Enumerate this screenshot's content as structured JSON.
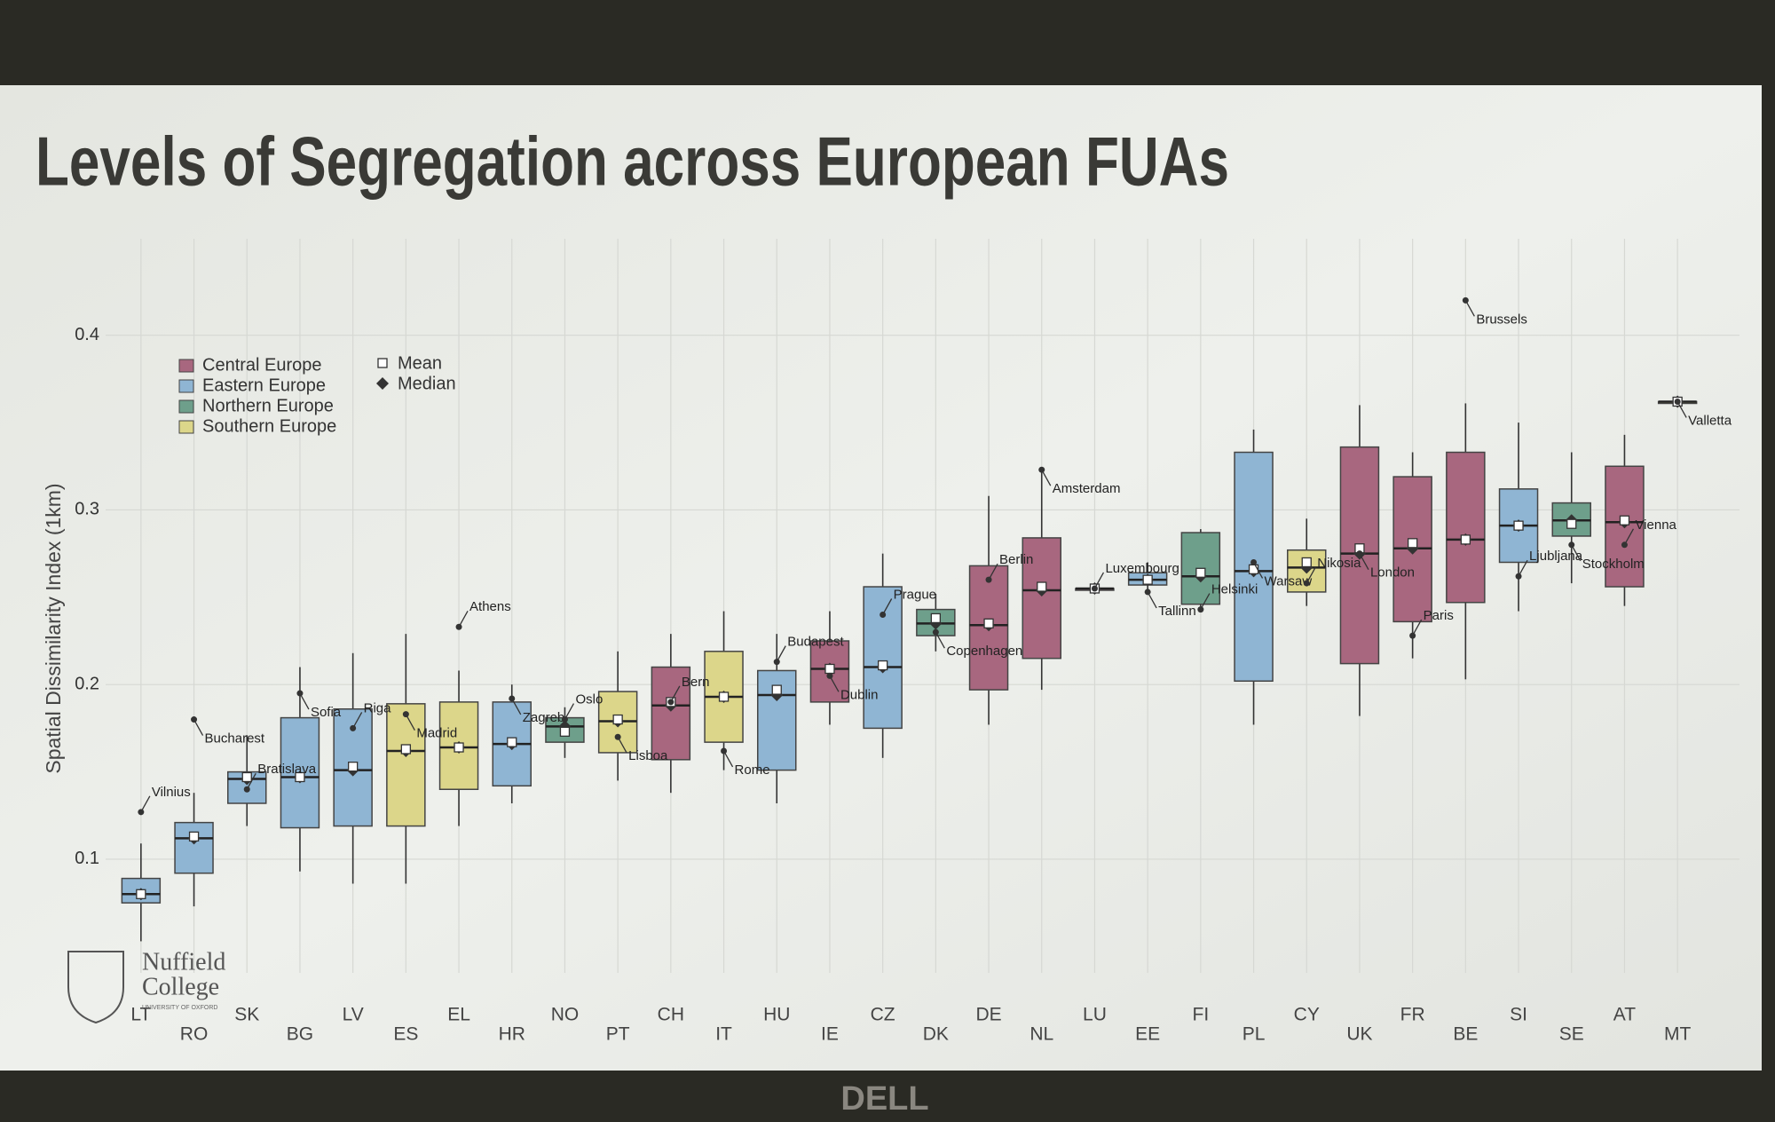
{
  "chart_data": {
    "type": "box",
    "title": "Levels of Segregation across European FUAs",
    "y_label": "Spatial Dissimilarity Index (1km)",
    "categories": [
      "LT",
      "RO",
      "SK",
      "BG",
      "LV",
      "ES",
      "EL",
      "HR",
      "NO",
      "PT",
      "CH",
      "IT",
      "HU",
      "IE",
      "CZ",
      "DK",
      "DE",
      "NL",
      "LU",
      "EE",
      "FI",
      "PL",
      "CY",
      "UK",
      "FR",
      "BE",
      "SI",
      "SE",
      "AT",
      "MT"
    ],
    "colors": [
      "#8fb5d3",
      "#8fb5d3",
      "#8fb5d3",
      "#8fb5d3",
      "#8fb5d3",
      "#dcd68a",
      "#dcd68a",
      "#8fb5d3",
      "#6e9f8b",
      "#dcd68a",
      "#a8677f",
      "#dcd68a",
      "#8fb5d3",
      "#a8677f",
      "#8fb5d3",
      "#6e9f8b",
      "#a8677f",
      "#a8677f",
      "#a8677f",
      "#8fb5d3",
      "#6e9f8b",
      "#8fb5d3",
      "#dcd68a",
      "#a8677f",
      "#a8677f",
      "#a8677f",
      "#8fb5d3",
      "#6e9f8b",
      "#a8677f",
      "#dcd68a"
    ],
    "whisker_low": [
      0.053,
      0.073,
      0.119,
      0.093,
      0.086,
      0.086,
      0.119,
      0.132,
      0.158,
      0.145,
      0.138,
      0.151,
      0.132,
      0.177,
      0.158,
      0.219,
      0.177,
      0.197,
      0.255,
      0.253,
      0.242,
      0.177,
      0.245,
      0.182,
      0.215,
      0.203,
      0.242,
      0.258,
      0.245,
      0.362
    ],
    "q1": [
      0.075,
      0.092,
      0.132,
      0.118,
      0.119,
      0.119,
      0.14,
      0.142,
      0.167,
      0.161,
      0.157,
      0.167,
      0.151,
      0.19,
      0.175,
      0.228,
      0.197,
      0.215,
      0.255,
      0.257,
      0.246,
      0.202,
      0.253,
      0.212,
      0.236,
      0.247,
      0.27,
      0.285,
      0.256,
      0.362
    ],
    "median": [
      0.08,
      0.112,
      0.146,
      0.147,
      0.151,
      0.162,
      0.164,
      0.166,
      0.176,
      0.179,
      0.188,
      0.193,
      0.194,
      0.209,
      0.21,
      0.235,
      0.234,
      0.254,
      0.255,
      0.26,
      0.262,
      0.265,
      0.267,
      0.275,
      0.278,
      0.283,
      0.291,
      0.294,
      0.293,
      0.362
    ],
    "q3": [
      0.089,
      0.121,
      0.15,
      0.181,
      0.186,
      0.189,
      0.19,
      0.19,
      0.181,
      0.196,
      0.21,
      0.219,
      0.208,
      0.225,
      0.256,
      0.243,
      0.268,
      0.284,
      0.255,
      0.264,
      0.287,
      0.333,
      0.277,
      0.336,
      0.319,
      0.333,
      0.312,
      0.304,
      0.325,
      0.362
    ],
    "whisker_high": [
      0.109,
      0.138,
      0.171,
      0.21,
      0.218,
      0.229,
      0.208,
      0.2,
      0.187,
      0.219,
      0.229,
      0.242,
      0.229,
      0.242,
      0.275,
      0.252,
      0.308,
      0.323,
      0.255,
      0.27,
      0.289,
      0.346,
      0.295,
      0.36,
      0.333,
      0.361,
      0.35,
      0.333,
      0.343,
      0.362
    ],
    "mean": [
      0.08,
      0.113,
      0.147,
      0.147,
      0.153,
      0.163,
      0.164,
      0.167,
      0.173,
      0.18,
      0.19,
      0.193,
      0.197,
      0.209,
      0.211,
      0.238,
      0.235,
      0.256,
      0.255,
      0.26,
      0.264,
      0.266,
      0.27,
      0.278,
      0.281,
      0.283,
      0.291,
      0.292,
      0.294,
      0.362
    ],
    "capitals": [
      {
        "name": "Vilnius",
        "value": 0.127
      },
      {
        "name": "Bucharest",
        "value": 0.18
      },
      {
        "name": "Bratislava",
        "value": 0.14
      },
      {
        "name": "Sofia",
        "value": 0.195
      },
      {
        "name": "Riga",
        "value": 0.175
      },
      {
        "name": "Madrid",
        "value": 0.183
      },
      {
        "name": "Athens",
        "value": 0.233
      },
      {
        "name": "Zagreb",
        "value": 0.192
      },
      {
        "name": "Oslo",
        "value": 0.18
      },
      {
        "name": "Lisboa",
        "value": 0.17
      },
      {
        "name": "Bern",
        "value": 0.19
      },
      {
        "name": "Rome",
        "value": 0.162
      },
      {
        "name": "Budapest",
        "value": 0.213
      },
      {
        "name": "Dublin",
        "value": 0.205
      },
      {
        "name": "Prague",
        "value": 0.24
      },
      {
        "name": "Copenhagen",
        "value": 0.23
      },
      {
        "name": "Berlin",
        "value": 0.26
      },
      {
        "name": "Amsterdam",
        "value": 0.323
      },
      {
        "name": "Luxembourg",
        "value": 0.255
      },
      {
        "name": "Tallinn",
        "value": 0.253
      },
      {
        "name": "Helsinki",
        "value": 0.243
      },
      {
        "name": "Warsaw",
        "value": 0.27
      },
      {
        "name": "Nikosia",
        "value": 0.258
      },
      {
        "name": "London",
        "value": 0.275
      },
      {
        "name": "Paris",
        "value": 0.228
      },
      {
        "name": "Brussels",
        "value": 0.42
      },
      {
        "name": "Ljubljana",
        "value": 0.262
      },
      {
        "name": "Stockholm",
        "value": 0.28
      },
      {
        "name": "Vienna",
        "value": 0.28
      },
      {
        "name": "Valletta",
        "value": 0.362
      }
    ],
    "legend": [
      {
        "name": "Central Europe",
        "color": "#a8677f"
      },
      {
        "name": "Eastern Europe",
        "color": "#8fb5d3"
      },
      {
        "name": "Northern Europe",
        "color": "#6e9f8b"
      },
      {
        "name": "Southern Europe",
        "color": "#dcd68a"
      }
    ],
    "mean_label": "Mean",
    "median_label": "Median",
    "ylim": [
      0.04,
      0.44
    ],
    "yticks": [
      0.1,
      0.2,
      0.3,
      0.4
    ],
    "grid": true
  },
  "logo": {
    "line1": "Nuffield",
    "line2": "College",
    "sub": "UNIVERSITY OF OXFORD"
  },
  "bezel_brand": "DELL"
}
